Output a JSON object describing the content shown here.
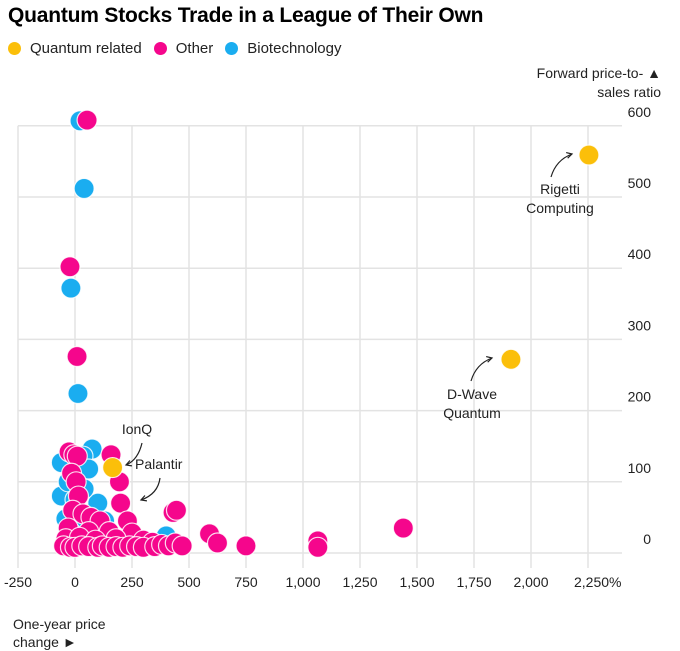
{
  "chart_data": {
    "type": "scatter",
    "title": "Quantum Stocks Trade in a League of Their Own",
    "xlabel": "One-year price change ►",
    "xlabel_lines": [
      "One-year price",
      "change ►"
    ],
    "ylabel": "Forward price-to-sales ratio ▲",
    "ylabel_lines": [
      "Forward price-to- ▲",
      "sales ratio"
    ],
    "xlim": [
      -250,
      2250
    ],
    "ylim": [
      0,
      600
    ],
    "x_ticks": [
      -250,
      0,
      250,
      500,
      750,
      1000,
      1250,
      1500,
      1750,
      2000,
      2250
    ],
    "x_tick_labels": [
      "-250",
      "0",
      "250",
      "500",
      "750",
      "1,000",
      "1,250",
      "1,500",
      "1,750",
      "2,000",
      "2,250%"
    ],
    "y_ticks": [
      0,
      100,
      200,
      300,
      400,
      500,
      600
    ],
    "y_tick_labels": [
      "0",
      "100",
      "200",
      "300",
      "400",
      "500",
      "600"
    ],
    "grid": true,
    "legend_position": "top-left",
    "colors": {
      "Quantum related": "#FBBF0A",
      "Other": "#F5068C",
      "Biotechnology": "#1AADF0"
    },
    "series": [
      {
        "name": "Biotechnology",
        "points": [
          [
            22,
            607
          ],
          [
            40,
            512
          ],
          [
            -18,
            372
          ],
          [
            13,
            224
          ],
          [
            -60,
            127
          ],
          [
            75,
            146
          ],
          [
            35,
            136
          ],
          [
            -60,
            80
          ],
          [
            -30,
            100
          ],
          [
            60,
            118
          ],
          [
            0,
            75
          ],
          [
            100,
            70
          ],
          [
            40,
            90
          ],
          [
            -40,
            48
          ],
          [
            130,
            45
          ],
          [
            20,
            40
          ],
          [
            -20,
            30
          ],
          [
            80,
            28
          ],
          [
            150,
            20
          ],
          [
            400,
            24
          ],
          [
            10,
            18
          ],
          [
            200,
            15
          ]
        ]
      },
      {
        "name": "Other",
        "points": [
          [
            53,
            608
          ],
          [
            -22,
            402
          ],
          [
            9,
            276
          ],
          [
            -26,
            142
          ],
          [
            -5,
            138
          ],
          [
            10,
            136
          ],
          [
            158,
            138
          ],
          [
            -15,
            112
          ],
          [
            5,
            100
          ],
          [
            195,
            100
          ],
          [
            200,
            70
          ],
          [
            15,
            80
          ],
          [
            -10,
            60
          ],
          [
            35,
            55
          ],
          [
            70,
            50
          ],
          [
            110,
            45
          ],
          [
            230,
            45
          ],
          [
            -30,
            35
          ],
          [
            60,
            30
          ],
          [
            150,
            30
          ],
          [
            250,
            28
          ],
          [
            -40,
            20
          ],
          [
            20,
            22
          ],
          [
            90,
            18
          ],
          [
            180,
            20
          ],
          [
            300,
            18
          ],
          [
            340,
            15
          ],
          [
            -50,
            10
          ],
          [
            -20,
            8
          ],
          [
            0,
            8
          ],
          [
            30,
            10
          ],
          [
            60,
            9
          ],
          [
            100,
            8
          ],
          [
            120,
            10
          ],
          [
            150,
            8
          ],
          [
            180,
            9
          ],
          [
            210,
            8
          ],
          [
            240,
            10
          ],
          [
            270,
            9
          ],
          [
            300,
            8
          ],
          [
            350,
            9
          ],
          [
            380,
            12
          ],
          [
            410,
            10
          ],
          [
            440,
            14
          ],
          [
            470,
            10
          ],
          [
            430,
            57
          ],
          [
            445,
            60
          ],
          [
            590,
            27
          ],
          [
            625,
            14
          ],
          [
            750,
            10
          ],
          [
            1065,
            17
          ],
          [
            1065,
            8
          ],
          [
            1440,
            35
          ]
        ]
      },
      {
        "name": "Quantum related",
        "points": [
          [
            165,
            120
          ],
          [
            1912,
            272
          ],
          [
            2254,
            559
          ]
        ]
      }
    ],
    "annotations": [
      {
        "label_lines": [
          "Rigetti",
          "Computing"
        ],
        "x": 2254,
        "y": 559
      },
      {
        "label_lines": [
          "D-Wave",
          "Quantum"
        ],
        "x": 1912,
        "y": 272
      },
      {
        "label_lines": [
          "IonQ"
        ],
        "x": 165,
        "y": 120
      },
      {
        "label_lines": [
          "Palantir"
        ],
        "x": 200,
        "y": 70
      }
    ]
  },
  "legend": [
    {
      "label": "Quantum related",
      "color": "#FBBF0A"
    },
    {
      "label": "Other",
      "color": "#F5068C"
    },
    {
      "label": "Biotechnology",
      "color": "#1AADF0"
    }
  ]
}
